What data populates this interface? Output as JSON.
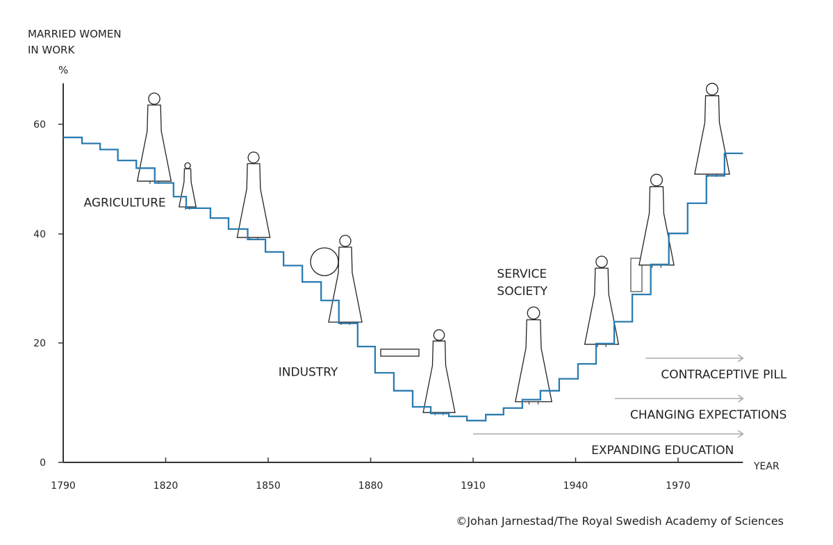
{
  "chart_data": {
    "type": "line",
    "style": "step",
    "ylabel_lines": [
      "MARRIED WOMEN",
      "IN WORK"
    ],
    "yunit": "%",
    "xlabel": "YEAR",
    "xlim": [
      1790,
      1989
    ],
    "ylim": [
      0,
      66
    ],
    "x_ticks": [
      1790,
      1820,
      1850,
      1880,
      1910,
      1940,
      1970
    ],
    "y_ticks": [
      0,
      20,
      40,
      60
    ],
    "grid": false,
    "line_color": "#2b7bb0",
    "x": [
      1790,
      1795.5,
      1800.8,
      1806,
      1811.4,
      1816.8,
      1822.3,
      1826,
      1833.1,
      1838.4,
      1844,
      1849.2,
      1854.5,
      1860,
      1865.5,
      1870.7,
      1876.2,
      1881.3,
      1886.8,
      1892.3,
      1897.6,
      1902.9,
      1908.2,
      1913.7,
      1918.9,
      1924.4,
      1929.7,
      1935.2,
      1940.7,
      1946,
      1951.3,
      1956.6,
      1962,
      1967.3,
      1972.8,
      1978.3,
      1983.6,
      1989
    ],
    "y": [
      57.6,
      56.5,
      55.4,
      53.4,
      52.0,
      49.3,
      46.8,
      44.7,
      42.9,
      40.9,
      39.0,
      36.7,
      34.2,
      31.2,
      27.8,
      23.6,
      19.4,
      15.0,
      12.0,
      9.3,
      8.2,
      7.7,
      7.0,
      8.0,
      9.1,
      10.5,
      12.0,
      14.0,
      16.5,
      19.9,
      23.9,
      28.9,
      34.4,
      40.1,
      45.6,
      50.6,
      54.7,
      54.7
    ],
    "era_labels": [
      {
        "text": "AGRICULTURE",
        "year": 1796,
        "value": 45
      },
      {
        "text": "INDUSTRY",
        "year": 1853,
        "value": 14.5
      },
      {
        "text": "SERVICE SOCIETY",
        "lines": [
          "SERVICE",
          "SOCIETY"
        ],
        "year": 1917,
        "value": 32
      }
    ],
    "annotations": [
      {
        "text": "CONTRACEPTIVE PILL",
        "start": 1960.5,
        "end": 1989,
        "color": "#aaaaaa"
      },
      {
        "text": "CHANGING EXPECTATIONS",
        "start": 1951.5,
        "end": 1989,
        "color": "#aaaaaa"
      },
      {
        "text": "EXPANDING EDUCATION",
        "start": 1910,
        "end": 1989,
        "color": "#aaaaaa"
      }
    ]
  },
  "credit": "©Johan Jarnestad/The Royal Swedish Academy of Sciences"
}
